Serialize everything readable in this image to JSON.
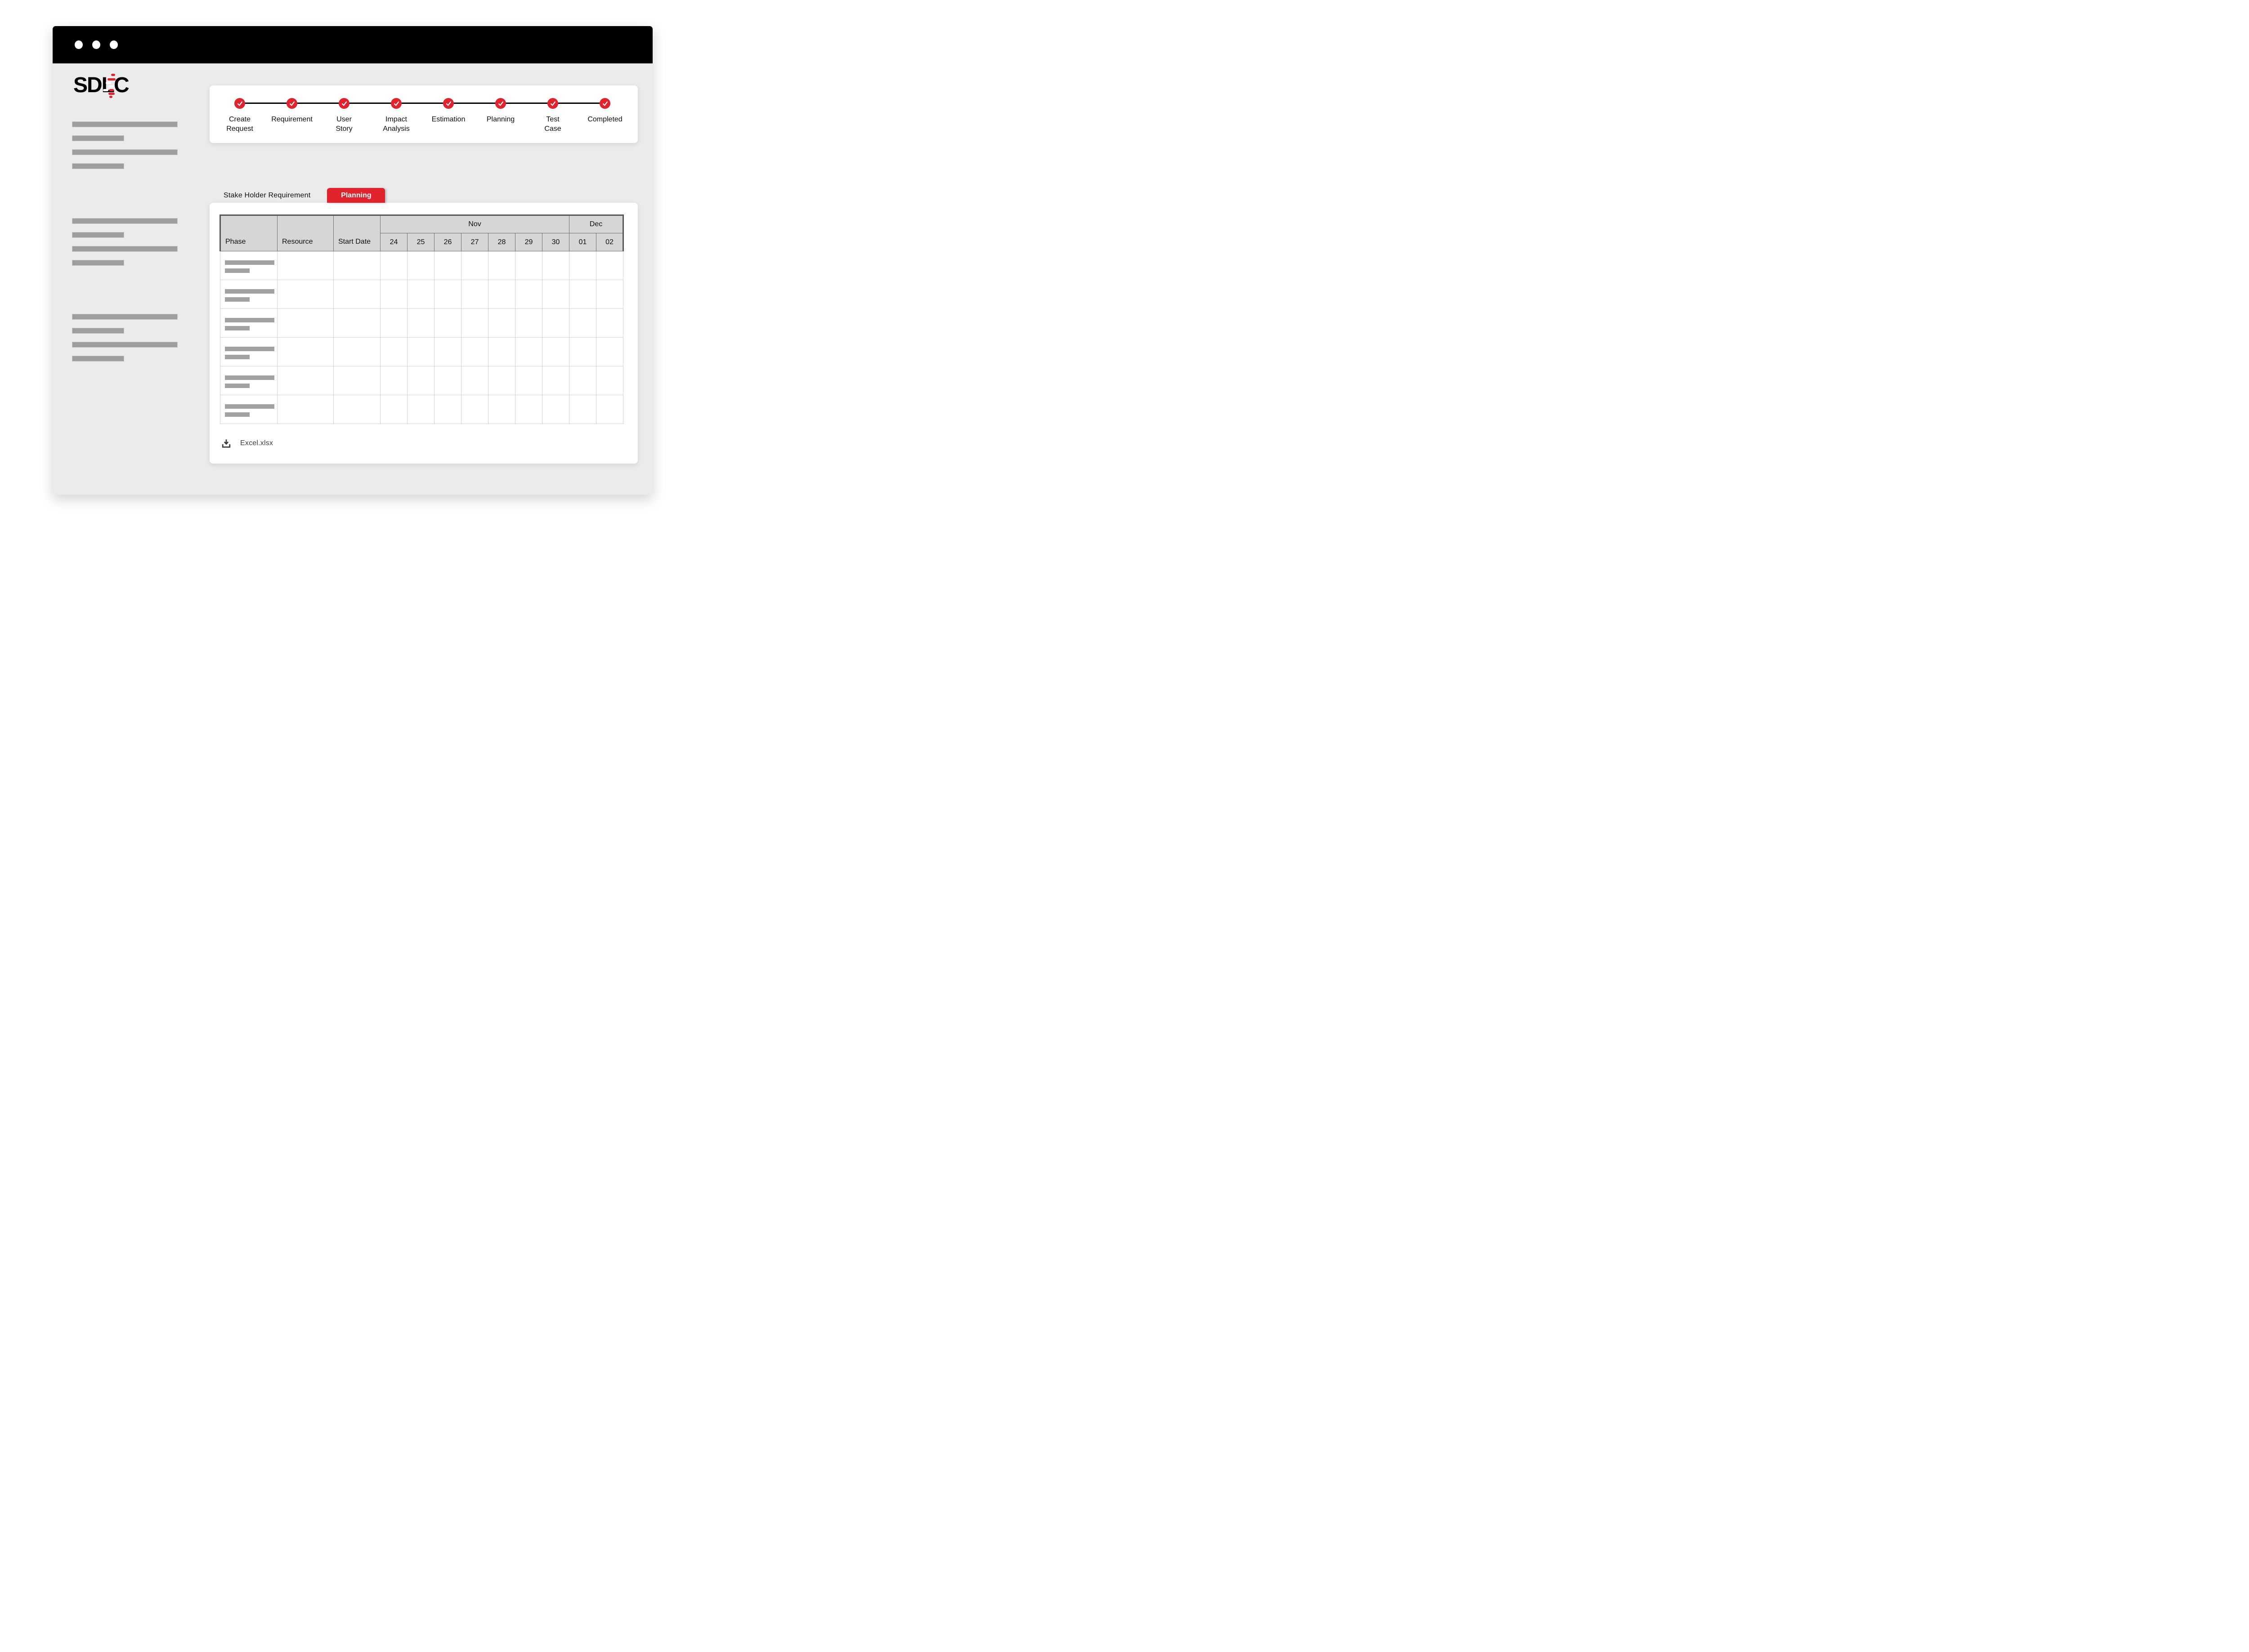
{
  "window": {
    "dots_count": 3
  },
  "logo": {
    "text": "SDLC"
  },
  "sidebar": {
    "groups": [
      {
        "bars": [
          "long",
          "short",
          "long",
          "short"
        ]
      },
      {
        "bars": [
          "long",
          "short",
          "long",
          "short"
        ]
      },
      {
        "bars": [
          "long",
          "short",
          "long",
          "short"
        ]
      }
    ]
  },
  "stepper": {
    "steps": [
      {
        "label": "Create\nRequest",
        "state": "completed"
      },
      {
        "label": "Requirement",
        "state": "completed"
      },
      {
        "label": "User\nStory",
        "state": "completed"
      },
      {
        "label": "Impact\nAnalysis",
        "state": "completed"
      },
      {
        "label": "Estimation",
        "state": "completed"
      },
      {
        "label": "Planning",
        "state": "completed"
      },
      {
        "label": "Test\nCase",
        "state": "completed"
      },
      {
        "label": "Completed",
        "state": "completed"
      }
    ]
  },
  "tabs": {
    "items": [
      {
        "label": "Stake Holder Requirement",
        "active": false
      },
      {
        "label": "Planning",
        "active": true
      }
    ]
  },
  "gantt_table": {
    "fixed_columns": [
      "Phase",
      "Resource",
      "Start Date"
    ],
    "month_groups": [
      {
        "label": "Nov",
        "days": [
          "24",
          "25",
          "26",
          "27",
          "28",
          "29",
          "30"
        ]
      },
      {
        "label": "Dec",
        "days": [
          "01",
          "02"
        ]
      }
    ],
    "placeholder_row_count": 6
  },
  "download": {
    "file_label": "Excel.xlsx",
    "icon": "download-icon"
  },
  "colors": {
    "accent_red": "#e0232c",
    "titlebar_black": "#000000",
    "window_bg": "#ebebeb",
    "header_gray": "#d6d6d6",
    "skeleton_gray": "#9e9e9e",
    "dark_border": "#57575a",
    "light_border": "#d2d2d2"
  }
}
